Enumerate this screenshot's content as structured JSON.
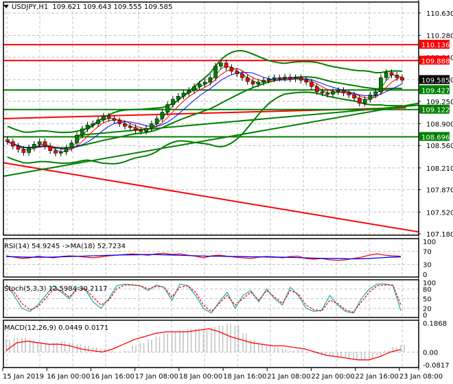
{
  "header": {
    "symbol": "USDJPY,H1",
    "ohlc": "109.621 109.643 109.555 109.585",
    "menu_icon": "triangle-down-icon"
  },
  "colors": {
    "background": "#ffffff",
    "grid": "#c0c0c0",
    "axis": "#000000",
    "bull_candle": "#008000",
    "bear_candle": "#ff0000",
    "bollinger": "#008000",
    "resistance": "#ff0000",
    "support": "#008000",
    "ma_fast": "#008000",
    "ma_mid": "#ff0000",
    "ma_slow": "#0000ff",
    "rsi": "#ff0000",
    "rsi_ma": "#0000ff",
    "stoch_main": "#20b2aa",
    "stoch_signal": "#ff0000",
    "macd_hist": "#c0c0c0",
    "macd_signal": "#ff0000",
    "current_price_tag": "#000000"
  },
  "price_axis": {
    "ticks": [
      "110.630",
      "110.280",
      "109.940",
      "109.590",
      "109.250",
      "108.900",
      "108.560",
      "108.210",
      "107.870",
      "107.520",
      "107.180"
    ],
    "tags": [
      {
        "value": "110.136",
        "color": "#ff0000"
      },
      {
        "value": "109.888",
        "color": "#ff0000"
      },
      {
        "value": "109.585",
        "color": "#000000"
      },
      {
        "value": "109.427",
        "color": "#008000"
      },
      {
        "value": "109.122",
        "color": "#008000"
      },
      {
        "value": "108.696",
        "color": "#008000"
      }
    ]
  },
  "time_axis": {
    "labels": [
      "15 Jan 2019",
      "16 Jan 00:00",
      "16 Jan 16:00",
      "17 Jan 08:00",
      "18 Jan 00:00",
      "18 Jan 16:00",
      "21 Jan 08:00",
      "22 Jan 00:00",
      "22 Jan 16:00",
      "23 Jan 08:00"
    ]
  },
  "rsi_panel": {
    "title": "RSI(14) 54.9245  ->MA(18) 52.7234",
    "ticks": [
      "100",
      "70",
      "30",
      "0"
    ]
  },
  "stoch_panel": {
    "title": "Stoch(5,3,3) 12.5984 30.2117",
    "ticks": [
      "100",
      "80",
      "50",
      "20",
      "0"
    ]
  },
  "macd_panel": {
    "title": "MACD(12,26,9) 0.0449 0.0171",
    "ticks": [
      "0.1868",
      "0.00",
      "-0.0817"
    ]
  },
  "chart_data": [
    {
      "type": "candlestick",
      "title": "USDJPY,H1",
      "ohlc_last": {
        "open": 109.621,
        "high": 109.643,
        "low": 109.555,
        "close": 109.585
      },
      "ylim": [
        107.18,
        110.63
      ],
      "y_ticks": [
        110.63,
        110.28,
        109.94,
        109.59,
        109.25,
        108.9,
        108.56,
        108.21,
        107.87,
        107.52,
        107.18
      ],
      "x_labels": [
        "15 Jan 2019",
        "16 Jan 00:00",
        "16 Jan 16:00",
        "17 Jan 08:00",
        "18 Jan 00:00",
        "18 Jan 16:00",
        "21 Jan 08:00",
        "22 Jan 00:00",
        "22 Jan 16:00",
        "23 Jan 08:00"
      ],
      "close_series": [
        108.62,
        108.55,
        108.5,
        108.45,
        108.52,
        108.58,
        108.62,
        108.55,
        108.48,
        108.44,
        108.46,
        108.52,
        108.6,
        108.72,
        108.82,
        108.88,
        108.9,
        108.96,
        109.02,
        108.98,
        108.95,
        108.9,
        108.86,
        108.84,
        108.8,
        108.78,
        108.83,
        108.9,
        108.98,
        109.08,
        109.2,
        109.28,
        109.33,
        109.38,
        109.42,
        109.48,
        109.52,
        109.55,
        109.62,
        109.8,
        109.85,
        109.78,
        109.72,
        109.68,
        109.62,
        109.56,
        109.52,
        109.55,
        109.58,
        109.6,
        109.62,
        109.61,
        109.63,
        109.6,
        109.62,
        109.58,
        109.55,
        109.48,
        109.4,
        109.38,
        109.36,
        109.4,
        109.42,
        109.38,
        109.35,
        109.3,
        109.22,
        109.28,
        109.35,
        109.4,
        109.62,
        109.7,
        109.66,
        109.62,
        109.58
      ],
      "horizontal_levels": [
        {
          "value": 110.136,
          "color": "#ff0000",
          "label": "110.136"
        },
        {
          "value": 109.888,
          "color": "#ff0000",
          "label": "109.888"
        },
        {
          "value": 109.427,
          "color": "#008000",
          "label": "109.427"
        },
        {
          "value": 109.122,
          "color": "#008000",
          "label": "109.122"
        },
        {
          "value": 108.696,
          "color": "#008000",
          "label": "108.696"
        }
      ],
      "trend_lines": [
        {
          "color": "#ff0000",
          "from": [
            0,
            108.29
          ],
          "to": [
            1,
            107.21
          ],
          "description": "descending resistance"
        },
        {
          "color": "#ff0000",
          "from": [
            0,
            108.98
          ],
          "to": [
            0.97,
            109.15
          ],
          "description": "flat MA-like red line"
        },
        {
          "color": "#008000",
          "from": [
            0,
            108.08
          ],
          "to": [
            1,
            109.22
          ],
          "description": "rising support"
        },
        {
          "color": "#008000",
          "from": [
            0.18,
            108.72
          ],
          "to": [
            1,
            109.19
          ],
          "description": "rising support 2"
        }
      ],
      "indicators": [
        "Bollinger Bands",
        "MA fast (green)",
        "MA mid (red)",
        "MA slow (blue)"
      ]
    },
    {
      "type": "line",
      "title": "RSI(14) 54.9245 ->MA(18) 52.7234",
      "ylim": [
        0,
        100
      ],
      "y_ticks": [
        100,
        70,
        30,
        0
      ],
      "series": [
        {
          "name": "RSI(14)",
          "color": "#ff0000",
          "values": [
            56,
            52,
            48,
            50,
            55,
            52,
            50,
            54,
            56,
            55,
            52,
            50,
            53,
            56,
            58,
            60,
            62,
            60,
            58,
            62,
            64,
            60,
            62,
            58,
            55,
            50,
            56,
            58,
            55,
            52,
            50,
            48,
            52,
            54,
            53,
            50,
            54,
            55,
            48,
            46,
            48,
            44,
            42,
            44,
            48,
            52,
            58,
            62,
            58,
            56,
            55
          ]
        },
        {
          "name": "MA(18)",
          "color": "#0000ff",
          "values": [
            54,
            53,
            52,
            52,
            52,
            53,
            54,
            55,
            56,
            57,
            58,
            59,
            59,
            60,
            60,
            59,
            58,
            57,
            56,
            55,
            55,
            54,
            54,
            53,
            53,
            52,
            52,
            51,
            50,
            49,
            48,
            48,
            47,
            47,
            48,
            50,
            52,
            53
          ]
        }
      ],
      "last": {
        "rsi": 54.9245,
        "ma": 52.7234
      }
    },
    {
      "type": "line",
      "title": "Stoch(5,3,3) 12.5984 30.2117",
      "ylim": [
        0,
        100
      ],
      "y_ticks": [
        100,
        80,
        50,
        20,
        0
      ],
      "series": [
        {
          "name": "%K",
          "color": "#20b2aa",
          "values": [
            95,
            60,
            20,
            10,
            30,
            60,
            90,
            70,
            50,
            85,
            80,
            40,
            20,
            50,
            90,
            95,
            92,
            90,
            75,
            92,
            85,
            45,
            95,
            90,
            60,
            20,
            5,
            40,
            70,
            20,
            60,
            75,
            40,
            80,
            50,
            30,
            85,
            60,
            20,
            10,
            15,
            60,
            30,
            10,
            5,
            50,
            80,
            95,
            96,
            90,
            12.6
          ]
        },
        {
          "name": "%D",
          "color": "#ff0000",
          "values": [
            90,
            70,
            35,
            15,
            25,
            50,
            80,
            75,
            55,
            78,
            80,
            55,
            30,
            45,
            80,
            92,
            93,
            90,
            80,
            88,
            86,
            55,
            85,
            90,
            70,
            30,
            10,
            35,
            60,
            30,
            50,
            70,
            45,
            75,
            55,
            35,
            75,
            65,
            30,
            15,
            12,
            45,
            35,
            15,
            8,
            40,
            70,
            90,
            92,
            92,
            30.2
          ]
        }
      ],
      "last": {
        "main": 12.5984,
        "signal": 30.2117
      }
    },
    {
      "type": "bar",
      "title": "MACD(12,26,9) 0.0449 0.0171",
      "ylim": [
        -0.0817,
        0.1868
      ],
      "y_ticks": [
        0.1868,
        0.0,
        -0.0817
      ],
      "series": [
        {
          "name": "MACD histogram",
          "color": "#c0c0c0",
          "values": [
            0.08,
            0.09,
            0.09,
            0.08,
            0.06,
            0.05,
            0.06,
            0.07,
            0.06,
            0.05,
            0.04,
            0.03,
            0.02,
            0.01,
            0.0,
            0.01,
            0.04,
            0.06,
            0.08,
            0.1,
            0.12,
            0.13,
            0.14,
            0.15,
            0.15,
            0.14,
            0.16,
            0.17,
            0.18,
            0.17,
            0.12,
            0.08,
            0.05,
            0.04,
            0.03,
            0.02,
            0.01,
            0.01,
            0.0,
            -0.01,
            -0.02,
            -0.03,
            -0.04,
            -0.04,
            -0.05,
            -0.05,
            -0.04,
            -0.02,
            0.01,
            0.03,
            0.045
          ]
        },
        {
          "name": "Signal",
          "color": "#ff0000",
          "values": [
            0.01,
            0.06,
            0.07,
            0.06,
            0.05,
            0.05,
            0.04,
            0.02,
            0.01,
            0.0,
            0.02,
            0.05,
            0.08,
            0.1,
            0.12,
            0.13,
            0.13,
            0.13,
            0.14,
            0.15,
            0.13,
            0.1,
            0.08,
            0.06,
            0.05,
            0.04,
            0.04,
            0.03,
            0.02,
            0.0,
            -0.02,
            -0.03,
            -0.04,
            -0.05,
            -0.05,
            -0.03,
            0.0,
            0.017
          ]
        }
      ],
      "last": {
        "macd": 0.0449,
        "signal": 0.0171
      }
    }
  ]
}
